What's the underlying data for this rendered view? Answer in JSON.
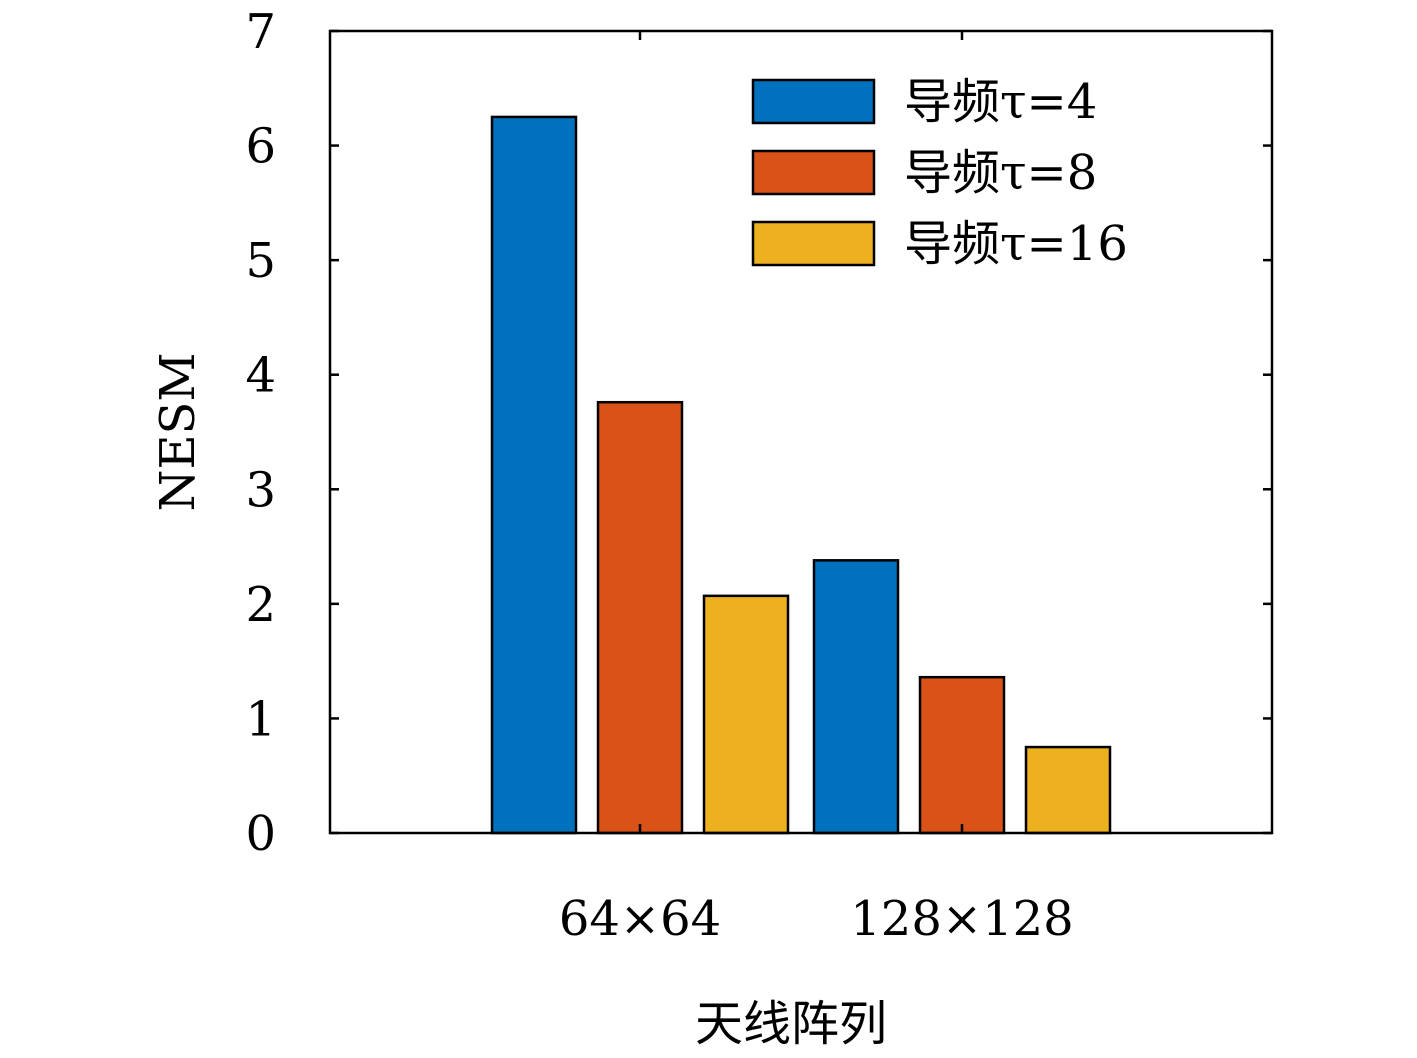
{
  "chart_data": {
    "type": "bar",
    "categories": [
      "64×64",
      "128×128"
    ],
    "series": [
      {
        "name": "导频τ=4",
        "values": [
          6.25,
          2.38
        ],
        "color": "#0072BD"
      },
      {
        "name": "导频τ=8",
        "values": [
          3.76,
          1.36
        ],
        "color": "#D95319"
      },
      {
        "name": "导频τ=16",
        "values": [
          2.07,
          0.75
        ],
        "color": "#EDB120"
      }
    ],
    "xlabel": "天线阵列",
    "ylabel": "NESM",
    "ylim": [
      0,
      7
    ],
    "yticks": [
      "0",
      "1",
      "2",
      "3",
      "4",
      "5",
      "6",
      "7"
    ],
    "grid": false,
    "legend_position": "top-right"
  }
}
